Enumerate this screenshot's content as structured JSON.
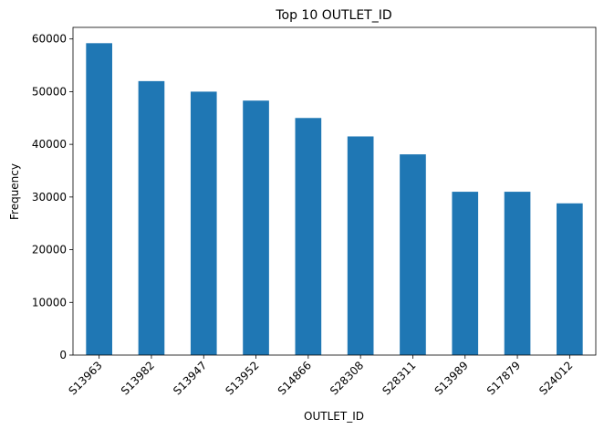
{
  "chart_data": {
    "type": "bar",
    "title": "Top 10 OUTLET_ID",
    "xlabel": "OUTLET_ID",
    "ylabel": "Frequency",
    "categories": [
      "S13963",
      "S13982",
      "S13947",
      "S13952",
      "S14866",
      "S28308",
      "S28311",
      "S13989",
      "S17879",
      "S24012"
    ],
    "values": [
      59200,
      52000,
      50000,
      48300,
      45000,
      41500,
      38100,
      31000,
      31000,
      28800
    ],
    "ylim": [
      0,
      62200
    ],
    "yticks": [
      0,
      10000,
      20000,
      30000,
      40000,
      50000,
      60000
    ],
    "ytick_labels": [
      "0",
      "10000",
      "20000",
      "30000",
      "40000",
      "50000",
      "60000"
    ],
    "bar_color": "#1f77b4",
    "grid": false,
    "legend": "none"
  }
}
